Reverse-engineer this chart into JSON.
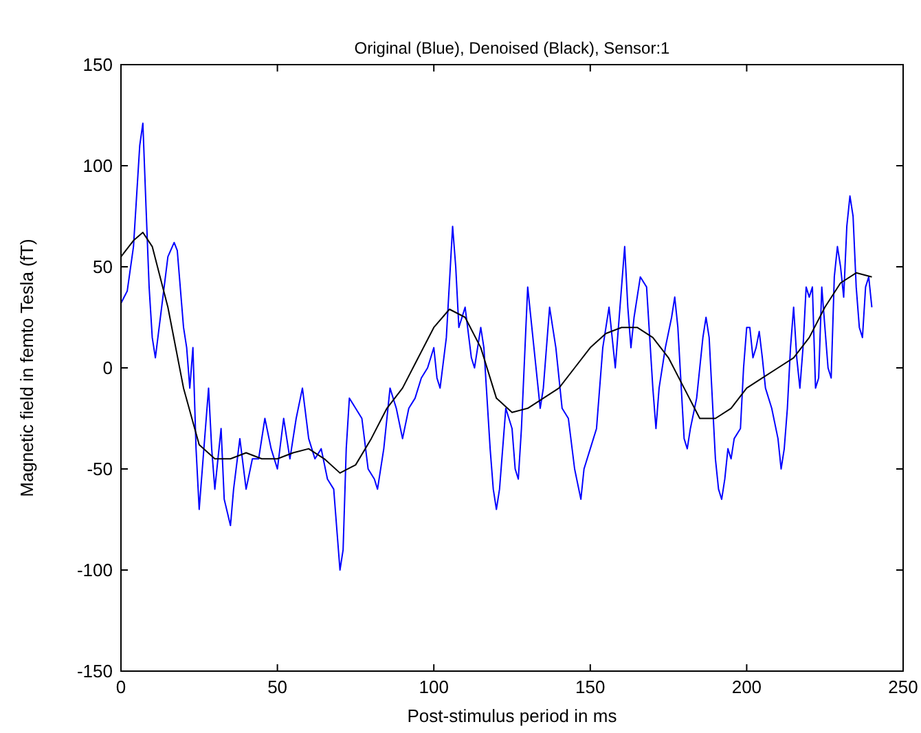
{
  "chart_data": {
    "type": "line",
    "title": "Original (Blue), Denoised (Black), Sensor:1",
    "xlabel": "Post-stimulus period in ms",
    "ylabel": "Magnetic field in femto Tesla (fT)",
    "xlim": [
      0,
      250
    ],
    "ylim": [
      -150,
      150
    ],
    "xticks": [
      0,
      50,
      100,
      150,
      200,
      250
    ],
    "yticks": [
      -150,
      -100,
      -50,
      0,
      50,
      100,
      150
    ],
    "grid": false,
    "marker": "none",
    "line_style": "solid",
    "series": [
      {
        "color": "#0000ff",
        "x": [
          0,
          2,
          4,
          6,
          7,
          8,
          9,
          10,
          11,
          13,
          15,
          17,
          18,
          20,
          21,
          22,
          23,
          24,
          25,
          26,
          28,
          29,
          30,
          32,
          33,
          35,
          36,
          38,
          40,
          42,
          44,
          46,
          48,
          50,
          52,
          54,
          56,
          58,
          60,
          62,
          64,
          66,
          68,
          70,
          71,
          72,
          73,
          75,
          77,
          79,
          81,
          82,
          84,
          86,
          88,
          90,
          92,
          94,
          96,
          98,
          100,
          101,
          102,
          104,
          106,
          107,
          108,
          110,
          112,
          113,
          115,
          116,
          118,
          119,
          120,
          121,
          123,
          125,
          126,
          127,
          128,
          130,
          132,
          134,
          135,
          137,
          139,
          141,
          143,
          145,
          147,
          148,
          150,
          152,
          154,
          156,
          157,
          158,
          160,
          161,
          162,
          163,
          164,
          166,
          168,
          170,
          171,
          172,
          174,
          176,
          177,
          178,
          180,
          181,
          182,
          184,
          186,
          187,
          188,
          190,
          191,
          192,
          193,
          194,
          195,
          196,
          198,
          199,
          200,
          201,
          202,
          203,
          204,
          205,
          206,
          208,
          210,
          211,
          212,
          213,
          214,
          215,
          216,
          217,
          218,
          219,
          220,
          221,
          222,
          223,
          224,
          225,
          226,
          227,
          228,
          229,
          230,
          231,
          232,
          233,
          234,
          235,
          236,
          237,
          238,
          239,
          240
        ],
        "values": [
          32,
          38,
          60,
          110,
          121,
          80,
          40,
          15,
          5,
          30,
          55,
          62,
          58,
          20,
          10,
          -10,
          10,
          -40,
          -70,
          -50,
          -10,
          -40,
          -60,
          -30,
          -65,
          -78,
          -60,
          -35,
          -60,
          -45,
          -45,
          -25,
          -40,
          -50,
          -25,
          -45,
          -25,
          -10,
          -35,
          -45,
          -40,
          -55,
          -60,
          -100,
          -90,
          -40,
          -15,
          -20,
          -25,
          -50,
          -55,
          -60,
          -40,
          -10,
          -20,
          -35,
          -20,
          -15,
          -5,
          0,
          10,
          -5,
          -10,
          15,
          70,
          50,
          20,
          30,
          5,
          0,
          20,
          10,
          -40,
          -60,
          -70,
          -60,
          -20,
          -30,
          -50,
          -55,
          -30,
          40,
          10,
          -20,
          -10,
          30,
          10,
          -20,
          -25,
          -50,
          -65,
          -50,
          -40,
          -30,
          10,
          30,
          15,
          0,
          40,
          60,
          30,
          10,
          25,
          45,
          40,
          -10,
          -30,
          -10,
          10,
          25,
          35,
          20,
          -35,
          -40,
          -30,
          -15,
          15,
          25,
          15,
          -45,
          -60,
          -65,
          -55,
          -40,
          -45,
          -35,
          -30,
          0,
          20,
          20,
          5,
          10,
          18,
          5,
          -10,
          -20,
          -35,
          -50,
          -40,
          -20,
          10,
          30,
          5,
          -10,
          10,
          40,
          35,
          40,
          -10,
          -5,
          40,
          20,
          0,
          -5,
          45,
          60,
          50,
          35,
          70,
          85,
          75,
          40,
          20,
          15,
          40,
          45,
          30
        ]
      },
      {
        "color": "#000000",
        "x": [
          0,
          4,
          7,
          10,
          15,
          20,
          25,
          30,
          35,
          40,
          45,
          50,
          55,
          60,
          65,
          70,
          75,
          80,
          85,
          90,
          95,
          100,
          105,
          110,
          115,
          120,
          125,
          130,
          135,
          140,
          145,
          150,
          155,
          160,
          165,
          170,
          175,
          180,
          185,
          190,
          195,
          200,
          205,
          210,
          215,
          220,
          225,
          230,
          235,
          240
        ],
        "values": [
          55,
          63,
          67,
          60,
          30,
          -10,
          -38,
          -45,
          -45,
          -42,
          -45,
          -45,
          -42,
          -40,
          -45,
          -52,
          -48,
          -35,
          -20,
          -10,
          5,
          20,
          29,
          25,
          10,
          -15,
          -22,
          -20,
          -15,
          -10,
          0,
          10,
          17,
          20,
          20,
          15,
          5,
          -10,
          -25,
          -25,
          -20,
          -10,
          -5,
          0,
          5,
          15,
          30,
          42,
          47,
          45
        ]
      }
    ]
  }
}
